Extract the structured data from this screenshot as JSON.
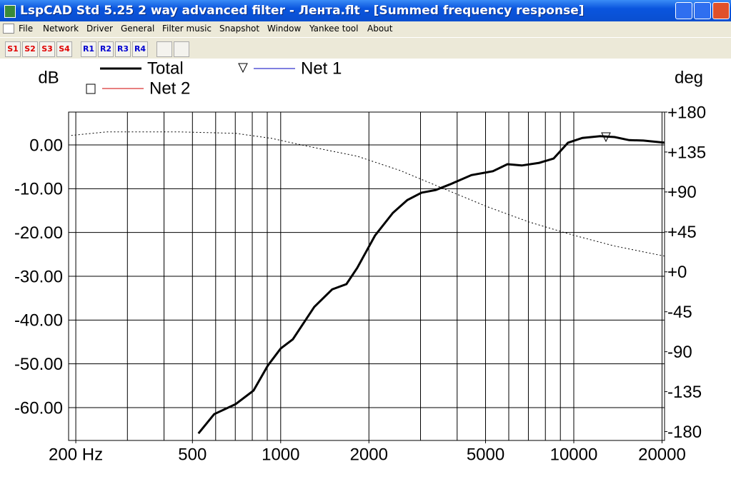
{
  "window": {
    "title": "LspCAD Std 5.25 2 way advanced filter - Лента.flt - [Summed frequency response]"
  },
  "menu": [
    "File",
    "Network",
    "Driver",
    "General",
    "Filter music",
    "Snapshot",
    "Window",
    "Yankee tool",
    "About"
  ],
  "toolbar": {
    "s_buttons": [
      "S1",
      "S2",
      "S3",
      "S4"
    ],
    "r_buttons": [
      "R1",
      "R2",
      "R3",
      "R4"
    ]
  },
  "chart_data": {
    "type": "line",
    "y_label": "dB",
    "y2_label": "deg",
    "xscale": "log",
    "xlim": [
      189,
      20400
    ],
    "xticks": [
      {
        "value": 200,
        "label": "200 Hz"
      },
      500,
      1000,
      2000,
      5000,
      10000,
      20000
    ],
    "xgrid": [
      200,
      300,
      400,
      500,
      600,
      700,
      800,
      900,
      1000,
      2000,
      3000,
      4000,
      5000,
      6000,
      7000,
      8000,
      9000,
      10000,
      20000
    ],
    "ylim": [
      -67.5,
      7.5
    ],
    "yticks": [
      {
        "value": 0,
        "label": "0.00"
      },
      {
        "value": -10,
        "label": "-10.00"
      },
      {
        "value": -20,
        "label": "-20.00"
      },
      {
        "value": -30,
        "label": "-30.00"
      },
      {
        "value": -40,
        "label": "-40.00"
      },
      {
        "value": -50,
        "label": "-50.00"
      },
      {
        "value": -60,
        "label": "-60.00"
      }
    ],
    "y2lim": [
      -190,
      180
    ],
    "y2ticks": [
      {
        "value": 180,
        "label": "+180"
      },
      {
        "value": 135,
        "label": "+135"
      },
      {
        "value": 90,
        "label": "+90"
      },
      {
        "value": 45,
        "label": "+45"
      },
      {
        "value": 0,
        "label": "+0"
      },
      -45,
      -90,
      -135,
      -180
    ],
    "grid": true,
    "series": [
      {
        "name": "Total",
        "color": "#000000",
        "width": 3,
        "marker": "none",
        "x": [
          524,
          593,
          702,
          808,
          904,
          1000,
          1100,
          1302,
          1498,
          1676,
          1824,
          2098,
          2416,
          2704,
          3023,
          3381,
          3784,
          4475,
          5296,
          5938,
          6645,
          7627,
          8537,
          9558,
          10700,
          12310,
          13790,
          15440,
          17280,
          20410
        ],
        "values": [
          -65.9,
          -61.5,
          -59.2,
          -56.1,
          -50.4,
          -46.5,
          -44.4,
          -37.0,
          -33.0,
          -31.8,
          -28.1,
          -20.7,
          -15.5,
          -12.6,
          -10.9,
          -10.3,
          -9.0,
          -6.9,
          -6.0,
          -4.4,
          -4.7,
          -4.1,
          -3.1,
          0.5,
          1.6,
          2.0,
          1.8,
          1.1,
          1.0,
          0.5
        ]
      },
      {
        "name": "Net 1",
        "color": "#0000c0",
        "width": 1,
        "marker": "triangle"
      },
      {
        "name": "Net 2",
        "color": "#d00000",
        "width": 1,
        "marker": "square"
      }
    ],
    "phase": {
      "axis": "y2",
      "color": "#000000",
      "dash": "2 3",
      "x": [
        193,
        255,
        448,
        702,
        930,
        1231,
        1824,
        2554,
        3576,
        5010,
        7018,
        9831,
        13790,
        20410
      ],
      "values": [
        153.7,
        157.7,
        157.7,
        156.0,
        150.4,
        141.6,
        130.3,
        114.2,
        94.1,
        74.0,
        56.3,
        41.8,
        29.0,
        17.7
      ]
    }
  }
}
